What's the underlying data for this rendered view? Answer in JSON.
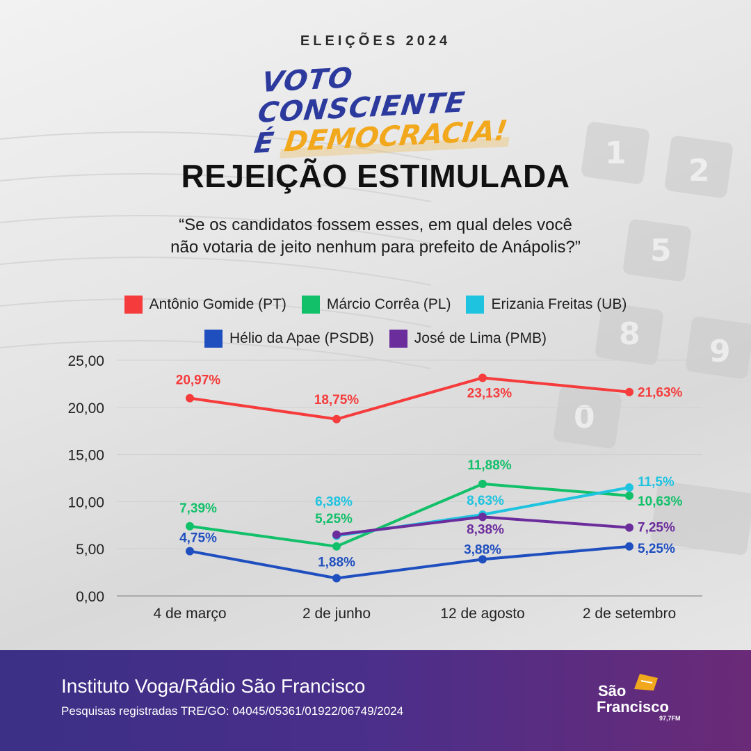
{
  "header": {
    "eyebrow": "ELEIÇÕES 2024",
    "slogan_line1": "VOTO CONSCIENTE",
    "slogan_e": "É",
    "slogan_highlight": "DEMOCRACIA!",
    "title": "REJEIÇÃO ESTIMULADA",
    "question_line1": "“Se os candidatos fossem esses, em qual deles você",
    "question_line2": "não votaria de jeito nenhum para prefeito de Anápolis?”"
  },
  "legend_row1": [
    {
      "label": "Antônio Gomide (PT)",
      "color": "#f53b3b"
    },
    {
      "label": "Márcio Corrêa (PL)",
      "color": "#12c06a"
    },
    {
      "label": "Erizania Freitas (UB)",
      "color": "#1ec3e0"
    }
  ],
  "legend_row2": [
    {
      "label": "Hélio da Apae (PSDB)",
      "color": "#1f4fbf"
    },
    {
      "label": "José de Lima (PMB)",
      "color": "#6b2c9c"
    }
  ],
  "chart_data": {
    "type": "line",
    "categories": [
      "4 de março",
      "2 de junho",
      "12 de agosto",
      "2 de setembro"
    ],
    "ylim": [
      0,
      25
    ],
    "yticks": [
      "0,00",
      "5,00",
      "10,00",
      "15,00",
      "20,00",
      "25,00"
    ],
    "grid": true,
    "legend_position": "top",
    "series": [
      {
        "name": "Antônio Gomide (PT)",
        "color": "#f53b3b",
        "values": [
          20.97,
          18.75,
          23.13,
          21.63
        ],
        "labels": [
          "20,97%",
          "18,75%",
          "23,13%",
          "21,63%"
        ]
      },
      {
        "name": "Márcio Corrêa (PL)",
        "color": "#12c06a",
        "values": [
          7.39,
          5.25,
          11.88,
          10.63
        ],
        "labels": [
          "7,39%",
          "5,25%",
          "11,88%",
          "10,63%"
        ]
      },
      {
        "name": "Erizania Freitas (UB)",
        "color": "#1ec3e0",
        "values": [
          null,
          6.38,
          8.63,
          11.5
        ],
        "labels": [
          null,
          "6,38%",
          "8,63%",
          "11,5%"
        ]
      },
      {
        "name": "Hélio da Apae (PSDB)",
        "color": "#1f4fbf",
        "values": [
          4.75,
          1.88,
          3.88,
          5.25
        ],
        "labels": [
          "4,75%",
          "1,88%",
          "3,88%",
          "5,25%"
        ]
      },
      {
        "name": "José de Lima (PMB)",
        "color": "#6b2c9c",
        "values": [
          null,
          6.5,
          8.38,
          7.25
        ],
        "labels": [
          null,
          null,
          "8,38%",
          "7,25%"
        ]
      }
    ]
  },
  "footer": {
    "source": "Instituto Voga/Rádio São Francisco",
    "registration": "Pesquisas registradas TRE/GO: 04045/05361/01922/06749/2024",
    "logo_line1": "São",
    "logo_line2": "Francisco",
    "logo_freq": "97,7FM"
  }
}
